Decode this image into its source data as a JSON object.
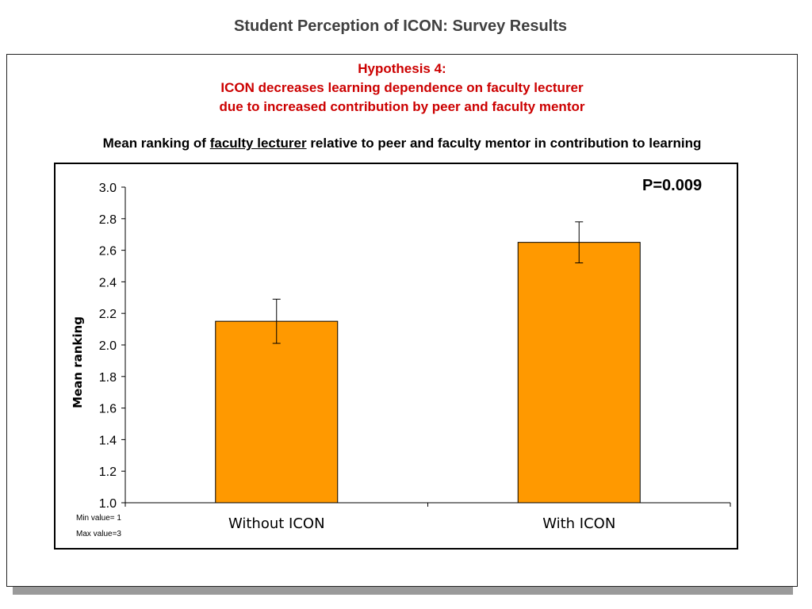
{
  "slide": {
    "title": "Student Perception of ICON: Survey Results"
  },
  "hypothesis": {
    "line1": "Hypothesis 4:",
    "line2": "ICON decreases learning dependence on faculty lecturer",
    "line3": "due to increased contribution by peer and faculty mentor"
  },
  "subtitle": {
    "before": "Mean ranking of ",
    "underlined": "faculty lecturer",
    "after": " relative to peer and faculty mentor in contribution to learning"
  },
  "notes": {
    "min": "Min value= 1",
    "max": "Max value=3"
  },
  "chart_data": {
    "type": "bar",
    "categories": [
      "Without ICON",
      "With ICON"
    ],
    "values": [
      2.15,
      2.65
    ],
    "error_bars": [
      {
        "low": 2.01,
        "high": 2.29
      },
      {
        "low": 2.52,
        "high": 2.78
      }
    ],
    "ylabel": "Mean ranking",
    "ylim": [
      1.0,
      3.0
    ],
    "yticks": [
      "1.0",
      "1.2",
      "1.4",
      "1.6",
      "1.8",
      "2.0",
      "2.2",
      "2.4",
      "2.6",
      "2.8",
      "3.0"
    ],
    "annotation": "P=0.009",
    "bar_color": "#ff9900",
    "grid": false
  }
}
